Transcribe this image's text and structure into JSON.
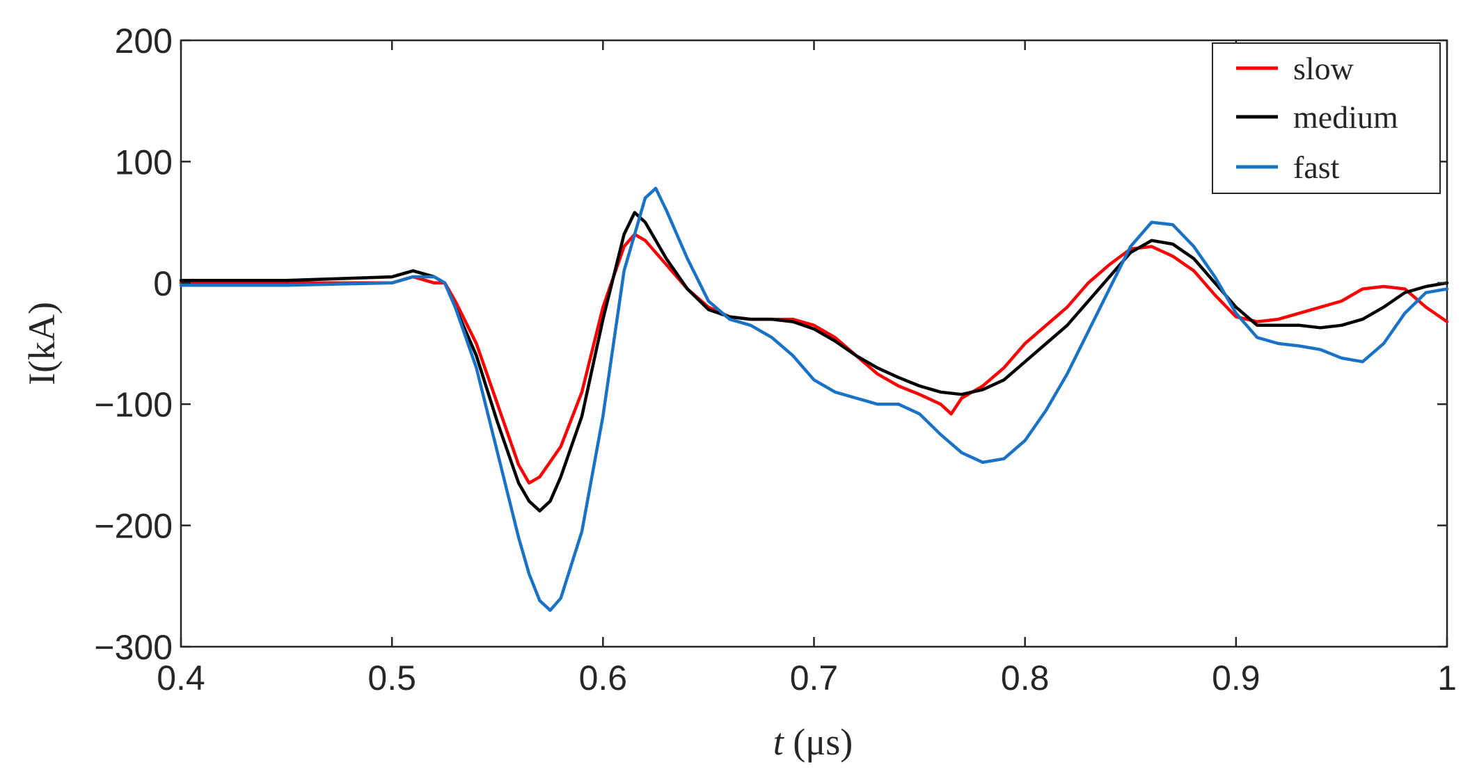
{
  "chart_data": {
    "type": "line",
    "xlabel_italic": "t",
    "xlabel_unit": " (μs)",
    "ylabel": "I(kA)",
    "xlim": [
      0.4,
      1.0
    ],
    "ylim": [
      -300,
      200
    ],
    "xticks": [
      0.4,
      0.5,
      0.6,
      0.7,
      0.8,
      0.9,
      1.0
    ],
    "xtick_labels": [
      "0.4",
      "0.5",
      "0.6",
      "0.7",
      "0.8",
      "0.9",
      "1"
    ],
    "yticks": [
      200,
      100,
      0,
      -100,
      -200,
      -300
    ],
    "ytick_labels": [
      "200",
      "100",
      "0",
      "−100",
      "−200",
      "−300"
    ],
    "grid": false,
    "legend_position": "top-right",
    "series": [
      {
        "name": "slow",
        "color": "#ff0000",
        "x": [
          0.4,
          0.45,
          0.5,
          0.51,
          0.52,
          0.525,
          0.53,
          0.54,
          0.55,
          0.56,
          0.565,
          0.57,
          0.58,
          0.59,
          0.6,
          0.61,
          0.615,
          0.62,
          0.63,
          0.64,
          0.65,
          0.66,
          0.67,
          0.68,
          0.69,
          0.7,
          0.71,
          0.72,
          0.73,
          0.74,
          0.75,
          0.76,
          0.765,
          0.77,
          0.78,
          0.79,
          0.8,
          0.81,
          0.82,
          0.83,
          0.84,
          0.85,
          0.86,
          0.87,
          0.88,
          0.89,
          0.9,
          0.91,
          0.92,
          0.93,
          0.94,
          0.95,
          0.96,
          0.97,
          0.98,
          0.99,
          1.0
        ],
        "y": [
          0,
          0,
          0,
          5,
          0,
          0,
          -15,
          -50,
          -100,
          -150,
          -165,
          -160,
          -135,
          -90,
          -20,
          30,
          40,
          35,
          15,
          -5,
          -20,
          -28,
          -30,
          -30,
          -30,
          -35,
          -45,
          -60,
          -75,
          -85,
          -92,
          -100,
          -108,
          -95,
          -85,
          -70,
          -50,
          -35,
          -20,
          0,
          15,
          28,
          30,
          22,
          10,
          -10,
          -28,
          -32,
          -30,
          -25,
          -20,
          -15,
          -5,
          -3,
          -5,
          -20,
          -32
        ]
      },
      {
        "name": "medium",
        "color": "#000000",
        "x": [
          0.4,
          0.45,
          0.5,
          0.51,
          0.52,
          0.525,
          0.53,
          0.54,
          0.55,
          0.56,
          0.565,
          0.57,
          0.575,
          0.58,
          0.59,
          0.6,
          0.61,
          0.615,
          0.62,
          0.63,
          0.64,
          0.65,
          0.66,
          0.67,
          0.68,
          0.69,
          0.7,
          0.71,
          0.72,
          0.73,
          0.74,
          0.75,
          0.76,
          0.77,
          0.78,
          0.79,
          0.8,
          0.81,
          0.82,
          0.83,
          0.84,
          0.85,
          0.86,
          0.87,
          0.88,
          0.89,
          0.9,
          0.91,
          0.92,
          0.93,
          0.94,
          0.95,
          0.96,
          0.97,
          0.98,
          0.99,
          1.0
        ],
        "y": [
          2,
          2,
          5,
          10,
          5,
          0,
          -20,
          -60,
          -115,
          -165,
          -180,
          -188,
          -180,
          -160,
          -110,
          -30,
          40,
          58,
          50,
          20,
          -5,
          -22,
          -28,
          -30,
          -30,
          -32,
          -38,
          -48,
          -60,
          -70,
          -78,
          -85,
          -90,
          -92,
          -88,
          -80,
          -65,
          -50,
          -35,
          -15,
          5,
          25,
          35,
          32,
          20,
          0,
          -20,
          -35,
          -35,
          -35,
          -37,
          -35,
          -30,
          -20,
          -8,
          -3,
          0
        ]
      },
      {
        "name": "fast",
        "color": "#1a72c4",
        "x": [
          0.4,
          0.45,
          0.5,
          0.51,
          0.52,
          0.525,
          0.53,
          0.54,
          0.55,
          0.56,
          0.565,
          0.57,
          0.575,
          0.58,
          0.59,
          0.6,
          0.61,
          0.62,
          0.625,
          0.63,
          0.64,
          0.65,
          0.66,
          0.67,
          0.68,
          0.69,
          0.7,
          0.71,
          0.72,
          0.73,
          0.74,
          0.75,
          0.76,
          0.77,
          0.78,
          0.79,
          0.8,
          0.81,
          0.82,
          0.83,
          0.84,
          0.85,
          0.86,
          0.87,
          0.88,
          0.89,
          0.9,
          0.91,
          0.92,
          0.93,
          0.94,
          0.95,
          0.96,
          0.97,
          0.98,
          0.99,
          1.0
        ],
        "y": [
          -2,
          -2,
          0,
          5,
          5,
          0,
          -20,
          -70,
          -140,
          -210,
          -240,
          -262,
          -270,
          -260,
          -205,
          -110,
          10,
          70,
          78,
          60,
          20,
          -15,
          -30,
          -35,
          -45,
          -60,
          -80,
          -90,
          -95,
          -100,
          -100,
          -108,
          -125,
          -140,
          -148,
          -145,
          -130,
          -105,
          -75,
          -40,
          -5,
          30,
          50,
          48,
          30,
          5,
          -25,
          -45,
          -50,
          -52,
          -55,
          -62,
          -65,
          -50,
          -25,
          -8,
          -5
        ]
      }
    ]
  }
}
